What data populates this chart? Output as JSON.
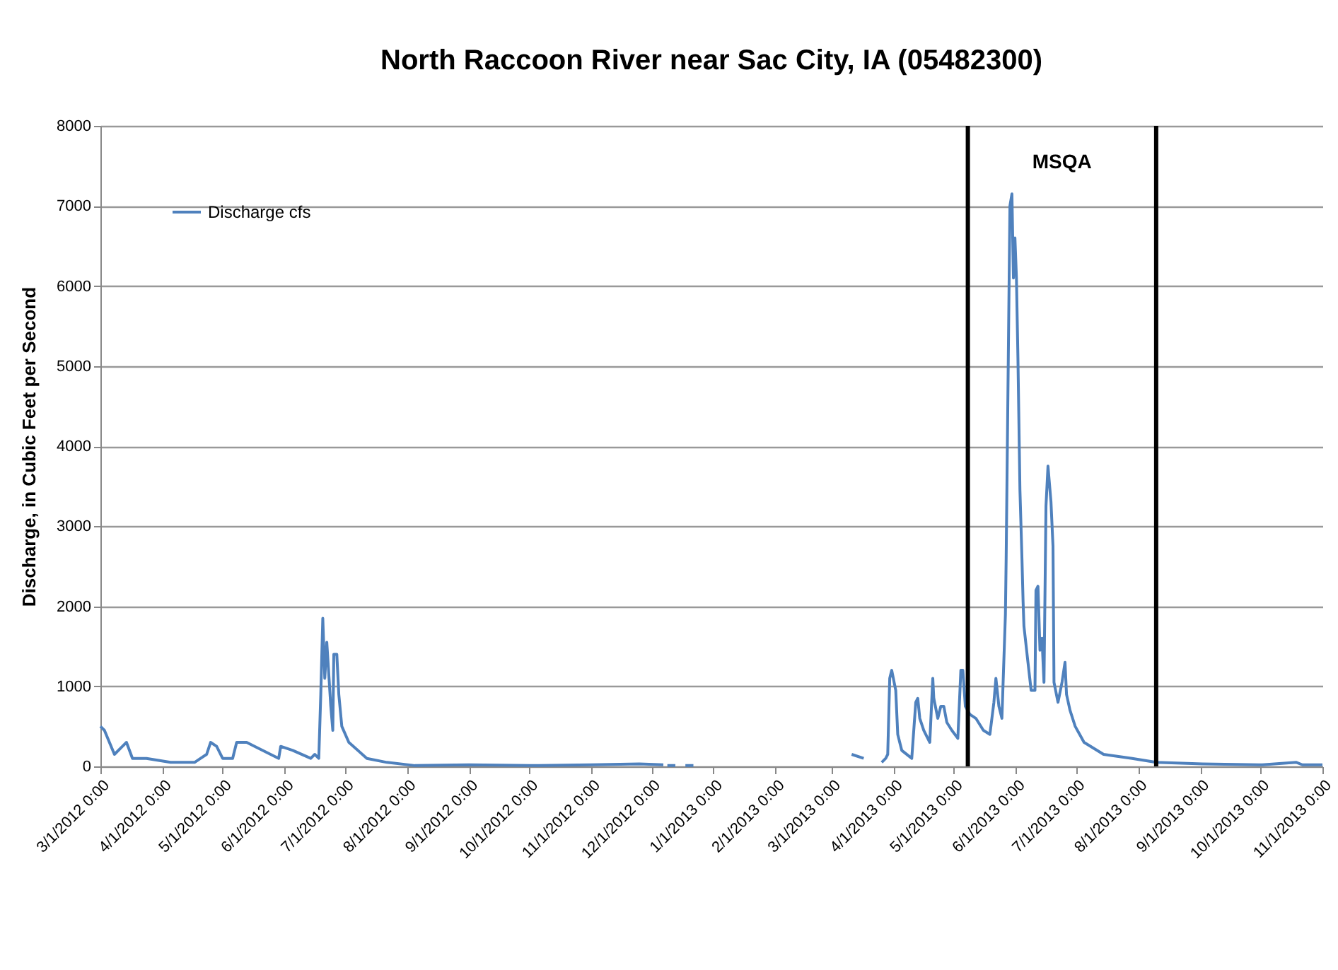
{
  "chart_data": {
    "type": "line",
    "title": "North Raccoon River near Sac City, IA (05482300)",
    "ylabel": "Discharge, in Cubic Feet per Second",
    "x": [
      "2012-03-01",
      "2012-03-03",
      "2012-03-08",
      "2012-03-12",
      "2012-03-14",
      "2012-03-17",
      "2012-03-24",
      "2012-04-05",
      "2012-04-17",
      "2012-04-20",
      "2012-04-23",
      "2012-04-25",
      "2012-04-28",
      "2012-05-01",
      "2012-05-06",
      "2012-05-08",
      "2012-05-13",
      "2012-05-17",
      "2012-05-29",
      "2012-05-30",
      "2012-06-05",
      "2012-06-14",
      "2012-06-16",
      "2012-06-18",
      "2012-06-19",
      "2012-06-20",
      "2012-06-21",
      "2012-06-22",
      "2012-06-24",
      "2012-06-25",
      "2012-06-25T12:00",
      "2012-06-27",
      "2012-06-28",
      "2012-06-29T12:00",
      "2012-07-03",
      "2012-07-12",
      "2012-07-22",
      "2012-08-05",
      "2012-09-01",
      "2012-10-01",
      "2012-11-01",
      "2012-11-25",
      "2012-12-07",
      "2012-12-08",
      "2012-12-09",
      "2012-12-13",
      "2012-12-14",
      "2012-12-18",
      "2012-12-22",
      "2012-12-23",
      "2013-03-11",
      "2013-03-17",
      "2013-03-18",
      "2013-03-26",
      "2013-03-28",
      "2013-03-29",
      "2013-03-30",
      "2013-03-31",
      "2013-04-02",
      "2013-04-03",
      "2013-04-05",
      "2013-04-10",
      "2013-04-12",
      "2013-04-13",
      "2013-04-14",
      "2013-04-16",
      "2013-04-19",
      "2013-04-20T12:00",
      "2013-04-21",
      "2013-04-23",
      "2013-04-24T12:00",
      "2013-04-26",
      "2013-04-27T12:00",
      "2013-04-30",
      "2013-05-03",
      "2013-05-04T12:00",
      "2013-05-05T12:00",
      "2013-05-06T18:00",
      "2013-05-09",
      "2013-05-12",
      "2013-05-15T18:00",
      "2013-05-19",
      "2013-05-21",
      "2013-05-22",
      "2013-05-23T12:00",
      "2013-05-25",
      "2013-05-26T18:00",
      "2013-05-27T03:00",
      "2013-05-29",
      "2013-05-30",
      "2013-05-30T18:00",
      "2013-05-31T12:00",
      "2013-06-01T06:00",
      "2013-06-02",
      "2013-06-03",
      "2013-06-04",
      "2013-06-04T14:00",
      "2013-06-05",
      "2013-06-07",
      "2013-06-08T14:00",
      "2013-06-10T12:00",
      "2013-06-11",
      "2013-06-12",
      "2013-06-13",
      "2013-06-14",
      "2013-06-15",
      "2013-06-16",
      "2013-06-17",
      "2013-06-18T12:00",
      "2013-06-19T12:00",
      "2013-06-20",
      "2013-06-22",
      "2013-06-24",
      "2013-06-25T12:00",
      "2013-06-26T06:00",
      "2013-06-28",
      "2013-06-30T14:00",
      "2013-07-05",
      "2013-07-14T18:00",
      "2013-07-29",
      "2013-08-10",
      "2013-09-02",
      "2013-10-02",
      "2013-10-19",
      "2013-10-22",
      "2013-11-01"
    ],
    "series": [
      {
        "name": "Discharge cfs",
        "color": "#4f81bd",
        "values": [
          500,
          450,
          150,
          250,
          300,
          100,
          100,
          50,
          50,
          100,
          150,
          300,
          250,
          100,
          100,
          300,
          300,
          250,
          100,
          250,
          200,
          100,
          150,
          100,
          900,
          1850,
          1100,
          1550,
          750,
          450,
          1400,
          1400,
          900,
          500,
          300,
          100,
          50,
          10,
          20,
          10,
          20,
          30,
          20,
          null,
          10,
          10,
          null,
          10,
          10,
          null,
          150,
          100,
          null,
          50,
          100,
          150,
          1100,
          1200,
          950,
          400,
          200,
          100,
          800,
          850,
          600,
          450,
          300,
          1100,
          850,
          600,
          750,
          750,
          550,
          450,
          350,
          1200,
          1200,
          750,
          650,
          600,
          450,
          400,
          800,
          1100,
          750,
          600,
          1900,
          2600,
          7000,
          7150,
          6100,
          6600,
          6100,
          5100,
          3450,
          2600,
          2050,
          1750,
          1300,
          950,
          950,
          2200,
          2250,
          1450,
          1600,
          1050,
          3250,
          3750,
          3300,
          2750,
          1050,
          800,
          1050,
          1300,
          900,
          700,
          500,
          300,
          150,
          100,
          50,
          30,
          20,
          50,
          20,
          20
        ]
      }
    ],
    "xlim": [
      "2012-03-01",
      "2013-11-01"
    ],
    "xticks": [
      {
        "value": "2012-03-01",
        "label": "3/1/2012 0:00"
      },
      {
        "value": "2012-04-01",
        "label": "4/1/2012 0:00"
      },
      {
        "value": "2012-05-01",
        "label": "5/1/2012 0:00"
      },
      {
        "value": "2012-06-01",
        "label": "6/1/2012 0:00"
      },
      {
        "value": "2012-07-01",
        "label": "7/1/2012 0:00"
      },
      {
        "value": "2012-08-01",
        "label": "8/1/2012 0:00"
      },
      {
        "value": "2012-09-01",
        "label": "9/1/2012 0:00"
      },
      {
        "value": "2012-10-01",
        "label": "10/1/2012 0:00"
      },
      {
        "value": "2012-11-01",
        "label": "11/1/2012 0:00"
      },
      {
        "value": "2012-12-01",
        "label": "12/1/2012 0:00"
      },
      {
        "value": "2013-01-01",
        "label": "1/1/2013 0:00"
      },
      {
        "value": "2013-02-01",
        "label": "2/1/2013 0:00"
      },
      {
        "value": "2013-03-01",
        "label": "3/1/2013 0:00"
      },
      {
        "value": "2013-04-01",
        "label": "4/1/2013 0:00"
      },
      {
        "value": "2013-05-01",
        "label": "5/1/2013 0:00"
      },
      {
        "value": "2013-06-01",
        "label": "6/1/2013 0:00"
      },
      {
        "value": "2013-07-01",
        "label": "7/1/2013 0:00"
      },
      {
        "value": "2013-08-01",
        "label": "8/1/2013 0:00"
      },
      {
        "value": "2013-09-01",
        "label": "9/1/2013 0:00"
      },
      {
        "value": "2013-10-01",
        "label": "10/1/2013 0:00"
      },
      {
        "value": "2013-11-01",
        "label": "11/1/2013 0:00"
      }
    ],
    "ylim": [
      0,
      8000
    ],
    "yticks": [
      0,
      1000,
      2000,
      3000,
      4000,
      5000,
      6000,
      7000,
      8000
    ],
    "grid": "y",
    "legend": "top left",
    "ref_lines": [
      {
        "axis": "x",
        "value": "2013-05-08",
        "color": "#000000"
      },
      {
        "axis": "x",
        "value": "2013-08-10",
        "color": "#000000"
      }
    ],
    "annotations": [
      "MSQA"
    ]
  }
}
